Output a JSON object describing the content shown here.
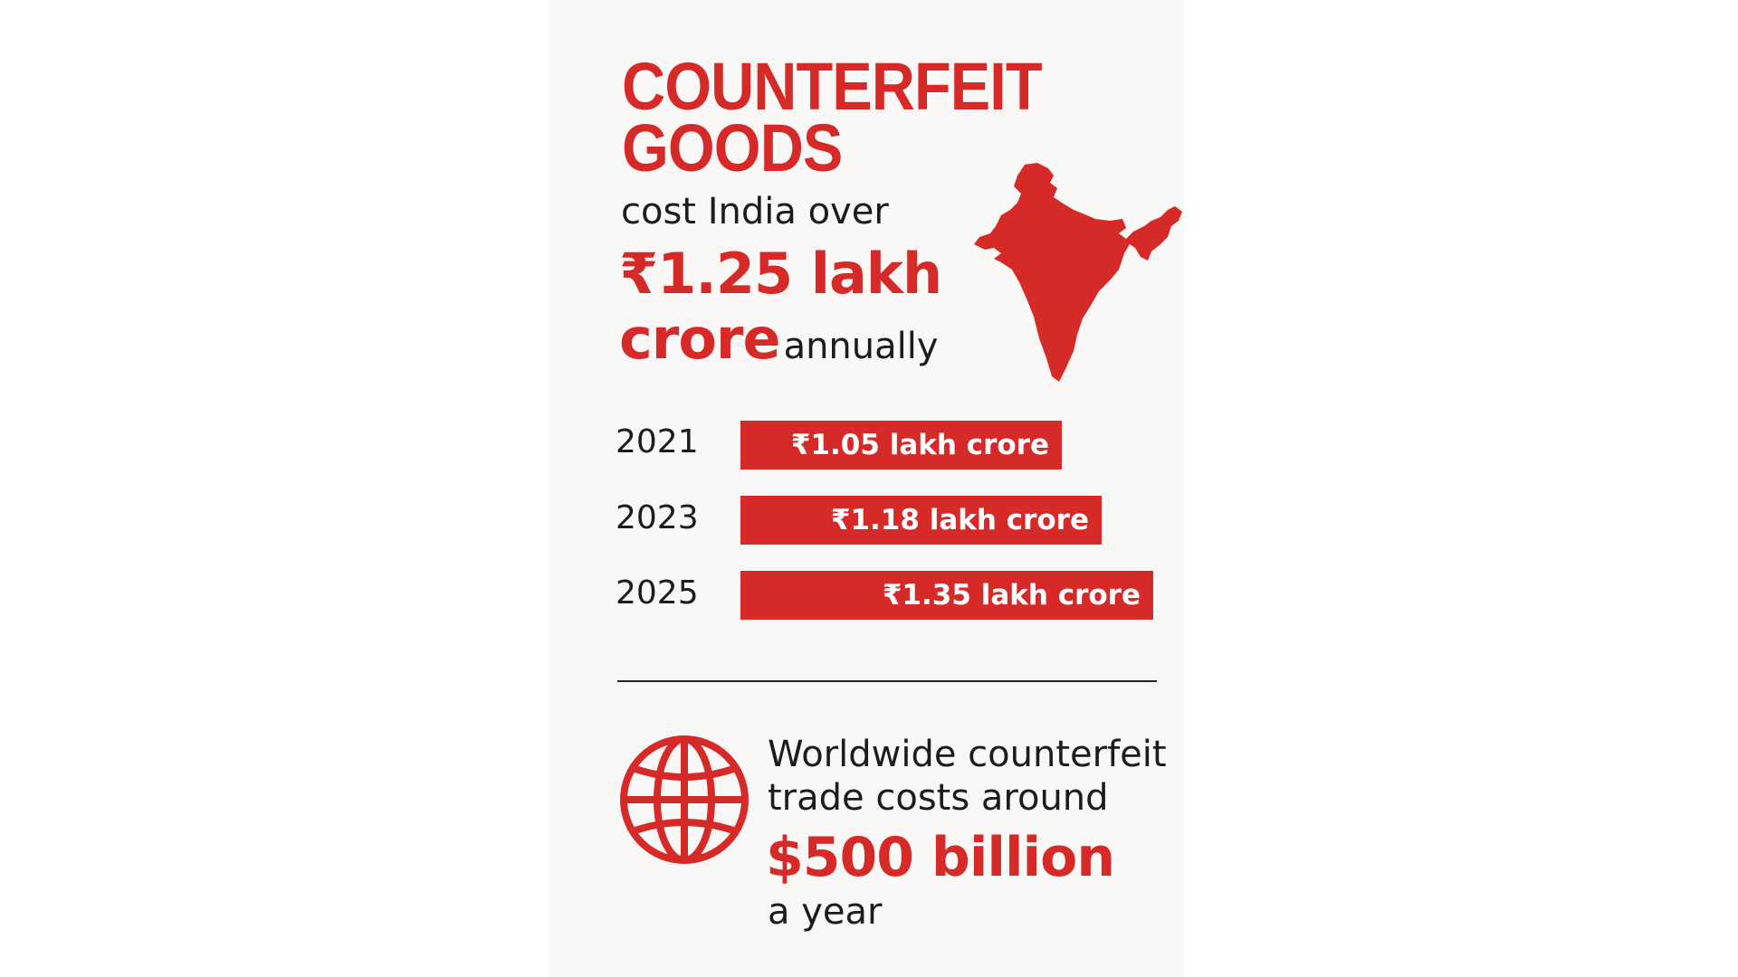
{
  "header": {
    "title_line1": "COUNTERFEIT",
    "title_line2": "GOODS",
    "subtitle": "cost India over",
    "headline_amount_line1": "₹1.25 lakh",
    "headline_amount_line2": "crore",
    "headline_suffix": "annually"
  },
  "icons": {
    "map": "india-map-icon",
    "globe": "globe-icon"
  },
  "colors": {
    "accent": "#d62a28",
    "text": "#1c1c1c",
    "bar_text": "#ffffff",
    "panel_background": "#f9f8f7"
  },
  "chart_data": {
    "type": "bar",
    "orientation": "horizontal",
    "title": "",
    "xlabel": "",
    "ylabel": "",
    "categories": [
      "2021",
      "2023",
      "2025"
    ],
    "values": [
      1.05,
      1.18,
      1.35
    ],
    "unit": "lakh crore",
    "data_labels": [
      "₹1.05 lakh crore",
      "₹1.18 lakh crore",
      "₹1.35 lakh crore"
    ],
    "grid": false,
    "legend": "none"
  },
  "footer": {
    "line1": "Worldwide counterfeit",
    "line2": "trade costs around",
    "amount": "$500 billion",
    "suffix": "a year"
  }
}
